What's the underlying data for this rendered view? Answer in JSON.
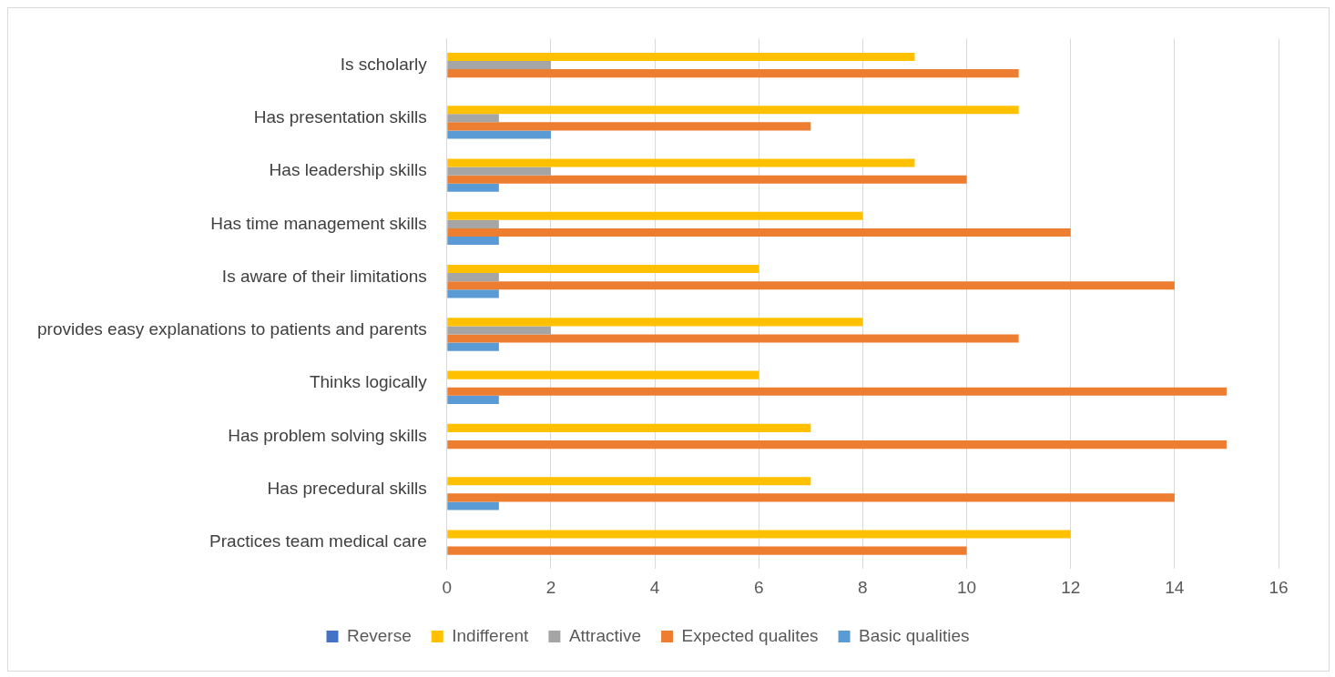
{
  "chart_data": {
    "type": "bar",
    "orientation": "horizontal",
    "categories": [
      "Is scholarly",
      "Has presentation skills",
      "Has leadership skills",
      "Has time management skills",
      "Is aware of their limitations",
      "provides easy explanations to patients and parents",
      "Thinks logically",
      "Has problem solving skills",
      "Has precedural skills",
      "Practices team medical care"
    ],
    "series": [
      {
        "name": "Reverse",
        "color": "#4472c4",
        "values": [
          0,
          0,
          0,
          0,
          0,
          0,
          0,
          0,
          0,
          0
        ]
      },
      {
        "name": "Indifferent",
        "color": "#ffc000",
        "values": [
          9,
          11,
          9,
          8,
          6,
          8,
          6,
          7,
          7,
          12
        ]
      },
      {
        "name": "Attractive",
        "color": "#a5a5a5",
        "values": [
          2,
          1,
          2,
          1,
          1,
          2,
          0,
          0,
          0,
          0
        ]
      },
      {
        "name": "Expected qualites",
        "color": "#ed7d31",
        "values": [
          11,
          7,
          10,
          12,
          14,
          11,
          15,
          15,
          14,
          10
        ]
      },
      {
        "name": "Basic qualities",
        "color": "#5b9bd5",
        "values": [
          0,
          2,
          1,
          1,
          1,
          1,
          1,
          0,
          1,
          0
        ]
      }
    ],
    "xlim": [
      0,
      16
    ],
    "xticks": [
      0,
      2,
      4,
      6,
      8,
      10,
      12,
      14,
      16
    ],
    "grid": "x",
    "legend": "bottom"
  }
}
